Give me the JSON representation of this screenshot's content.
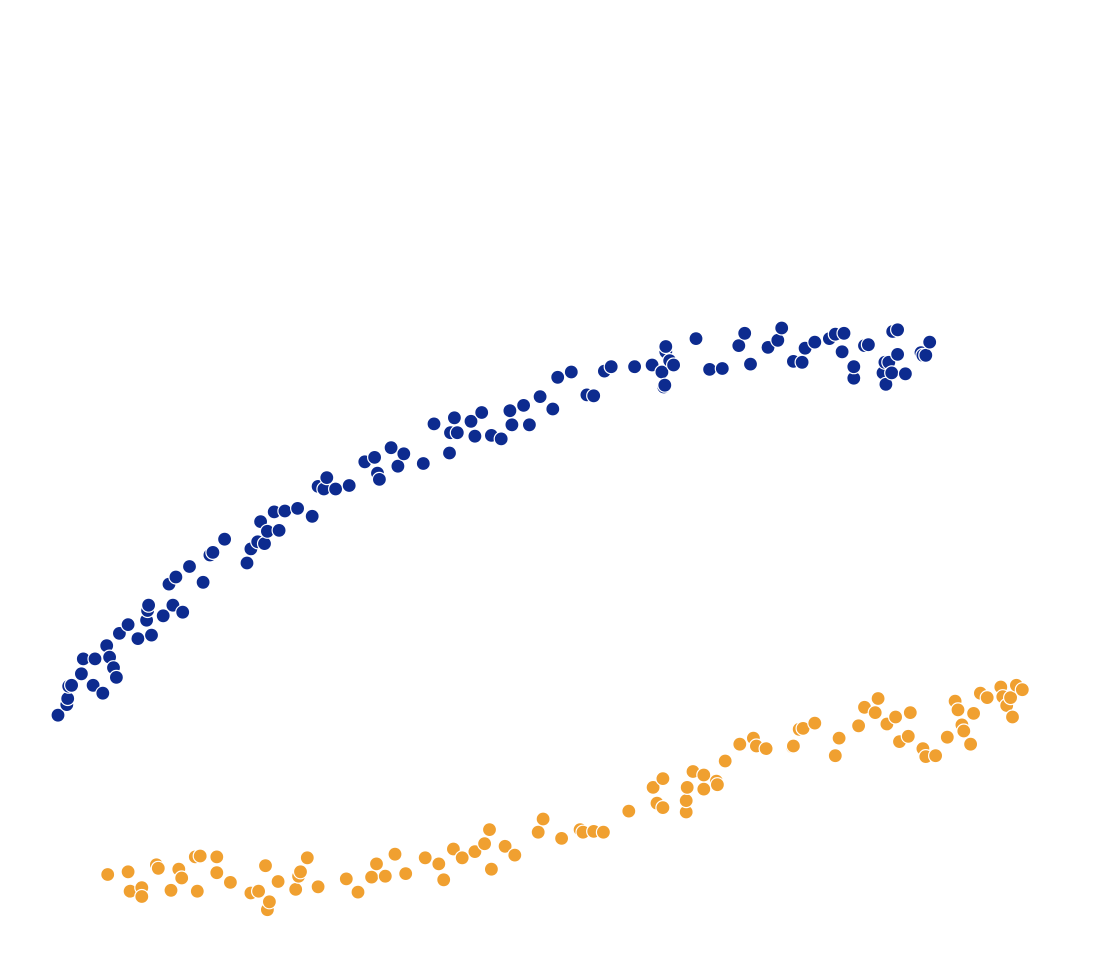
{
  "chart_data": {
    "type": "scatter",
    "title": "",
    "xlabel": "",
    "ylabel": "",
    "xlim": [
      0,
      100
    ],
    "ylim": [
      0,
      100
    ],
    "grid": false,
    "legend": "none",
    "series": [
      {
        "name": "blue",
        "color": "#0d2b8f",
        "points": [
          [
            0.0,
            33.5
          ],
          [
            0.9,
            34.7
          ],
          [
            1.0,
            35.4
          ],
          [
            1.1,
            36.8
          ],
          [
            1.4,
            36.9
          ],
          [
            2.4,
            38.2
          ],
          [
            2.6,
            39.9
          ],
          [
            3.6,
            36.9
          ],
          [
            3.8,
            39.9
          ],
          [
            4.6,
            36.0
          ],
          [
            5.0,
            41.4
          ],
          [
            5.3,
            40.1
          ],
          [
            5.7,
            38.9
          ],
          [
            6.0,
            37.8
          ],
          [
            6.3,
            42.8
          ],
          [
            7.2,
            43.8
          ],
          [
            8.2,
            42.2
          ],
          [
            9.1,
            44.3
          ],
          [
            9.2,
            45.4
          ],
          [
            9.3,
            46.0
          ],
          [
            9.6,
            42.6
          ],
          [
            10.8,
            44.8
          ],
          [
            11.4,
            48.4
          ],
          [
            11.8,
            46.0
          ],
          [
            12.1,
            49.2
          ],
          [
            12.8,
            45.2
          ],
          [
            13.5,
            50.4
          ],
          [
            14.9,
            48.6
          ],
          [
            15.6,
            51.7
          ],
          [
            15.9,
            52.0
          ],
          [
            17.1,
            53.5
          ],
          [
            19.4,
            50.8
          ],
          [
            19.8,
            52.4
          ],
          [
            20.5,
            53.2
          ],
          [
            20.8,
            55.5
          ],
          [
            21.2,
            53.0
          ],
          [
            21.5,
            54.4
          ],
          [
            22.2,
            56.6
          ],
          [
            22.7,
            54.5
          ],
          [
            23.3,
            56.7
          ],
          [
            24.6,
            57.0
          ],
          [
            26.1,
            56.1
          ],
          [
            26.7,
            59.5
          ],
          [
            27.3,
            59.2
          ],
          [
            27.6,
            60.5
          ],
          [
            28.5,
            59.2
          ],
          [
            29.9,
            59.6
          ],
          [
            31.5,
            62.3
          ],
          [
            32.5,
            62.8
          ],
          [
            32.8,
            61.0
          ],
          [
            33.0,
            60.3
          ],
          [
            34.2,
            63.9
          ],
          [
            34.9,
            61.8
          ],
          [
            35.5,
            63.2
          ],
          [
            37.5,
            62.1
          ],
          [
            38.6,
            66.6
          ],
          [
            40.2,
            63.3
          ],
          [
            40.3,
            65.6
          ],
          [
            40.7,
            67.3
          ],
          [
            41.0,
            65.6
          ],
          [
            42.4,
            66.9
          ],
          [
            42.8,
            65.2
          ],
          [
            43.5,
            67.9
          ],
          [
            44.5,
            65.3
          ],
          [
            45.5,
            64.9
          ],
          [
            46.4,
            68.1
          ],
          [
            46.6,
            66.5
          ],
          [
            47.8,
            68.7
          ],
          [
            48.4,
            66.5
          ],
          [
            49.5,
            69.7
          ],
          [
            50.8,
            68.3
          ],
          [
            51.3,
            71.9
          ],
          [
            52.7,
            72.5
          ],
          [
            54.3,
            69.9
          ],
          [
            55.0,
            69.8
          ],
          [
            56.1,
            72.6
          ],
          [
            56.8,
            73.1
          ],
          [
            59.2,
            73.1
          ],
          [
            61.0,
            73.3
          ],
          [
            62.0,
            72.5
          ],
          [
            62.2,
            70.8
          ],
          [
            62.3,
            71.0
          ],
          [
            62.4,
            74.8
          ],
          [
            62.4,
            75.4
          ],
          [
            62.8,
            73.8
          ],
          [
            63.2,
            73.3
          ],
          [
            65.5,
            76.3
          ],
          [
            66.9,
            72.8
          ],
          [
            68.2,
            72.9
          ],
          [
            69.9,
            75.5
          ],
          [
            70.5,
            76.9
          ],
          [
            71.1,
            73.4
          ],
          [
            72.9,
            75.3
          ],
          [
            73.9,
            76.1
          ],
          [
            74.3,
            77.5
          ],
          [
            75.5,
            73.7
          ],
          [
            76.4,
            73.6
          ],
          [
            76.7,
            75.2
          ],
          [
            77.7,
            75.9
          ],
          [
            79.2,
            76.3
          ],
          [
            79.8,
            76.8
          ],
          [
            80.5,
            74.8
          ],
          [
            80.7,
            76.9
          ],
          [
            81.7,
            71.8
          ],
          [
            81.7,
            73.1
          ],
          [
            82.8,
            75.5
          ],
          [
            83.2,
            75.6
          ],
          [
            84.7,
            72.4
          ],
          [
            84.9,
            73.6
          ],
          [
            85.0,
            71.1
          ],
          [
            85.3,
            73.6
          ],
          [
            85.6,
            72.4
          ],
          [
            85.7,
            77.1
          ],
          [
            86.2,
            74.5
          ],
          [
            86.2,
            77.3
          ],
          [
            87.0,
            72.3
          ],
          [
            88.6,
            74.7
          ],
          [
            88.8,
            74.4
          ],
          [
            89.1,
            74.4
          ],
          [
            89.5,
            75.9
          ]
        ]
      },
      {
        "name": "orange",
        "color": "#f0a030",
        "points": [
          [
            5.1,
            15.4
          ],
          [
            7.2,
            15.7
          ],
          [
            7.4,
            13.5
          ],
          [
            8.6,
            13.9
          ],
          [
            8.6,
            12.9
          ],
          [
            10.1,
            16.5
          ],
          [
            10.3,
            16.1
          ],
          [
            11.6,
            13.6
          ],
          [
            12.4,
            16.0
          ],
          [
            12.7,
            15.0
          ],
          [
            14.1,
            17.4
          ],
          [
            14.3,
            13.5
          ],
          [
            14.6,
            17.5
          ],
          [
            16.3,
            15.6
          ],
          [
            16.3,
            17.4
          ],
          [
            17.7,
            14.5
          ],
          [
            19.8,
            13.3
          ],
          [
            20.6,
            13.5
          ],
          [
            21.3,
            16.4
          ],
          [
            21.5,
            11.4
          ],
          [
            21.7,
            12.3
          ],
          [
            22.6,
            14.6
          ],
          [
            24.4,
            13.7
          ],
          [
            24.7,
            15.2
          ],
          [
            24.9,
            15.7
          ],
          [
            25.6,
            17.3
          ],
          [
            26.7,
            14.0
          ],
          [
            29.6,
            14.9
          ],
          [
            30.8,
            13.4
          ],
          [
            32.2,
            15.1
          ],
          [
            32.7,
            16.6
          ],
          [
            33.6,
            15.2
          ],
          [
            34.6,
            17.7
          ],
          [
            35.7,
            15.5
          ],
          [
            37.7,
            17.3
          ],
          [
            39.1,
            16.6
          ],
          [
            39.6,
            14.8
          ],
          [
            40.6,
            18.3
          ],
          [
            41.5,
            17.3
          ],
          [
            42.8,
            18.0
          ],
          [
            43.8,
            18.9
          ],
          [
            44.3,
            20.5
          ],
          [
            44.5,
            16.0
          ],
          [
            45.9,
            18.6
          ],
          [
            46.9,
            17.6
          ],
          [
            49.3,
            20.2
          ],
          [
            49.8,
            21.7
          ],
          [
            51.7,
            19.5
          ],
          [
            53.6,
            20.5
          ],
          [
            53.9,
            20.2
          ],
          [
            55.0,
            20.3
          ],
          [
            56.0,
            20.2
          ],
          [
            58.6,
            22.6
          ],
          [
            61.1,
            25.3
          ],
          [
            61.5,
            23.5
          ],
          [
            62.1,
            23.0
          ],
          [
            62.1,
            26.3
          ],
          [
            64.5,
            22.5
          ],
          [
            64.5,
            23.8
          ],
          [
            64.6,
            25.3
          ],
          [
            65.2,
            27.1
          ],
          [
            66.3,
            25.1
          ],
          [
            66.3,
            26.7
          ],
          [
            67.6,
            26.0
          ],
          [
            67.7,
            25.6
          ],
          [
            68.5,
            28.3
          ],
          [
            70.0,
            30.2
          ],
          [
            71.4,
            30.9
          ],
          [
            71.7,
            30.0
          ],
          [
            72.7,
            29.7
          ],
          [
            75.4,
            29.9
          ],
          [
            75.5,
            30.0
          ],
          [
            76.1,
            31.9
          ],
          [
            76.5,
            32.0
          ],
          [
            77.7,
            32.6
          ],
          [
            79.8,
            28.9
          ],
          [
            80.2,
            30.9
          ],
          [
            82.2,
            32.3
          ],
          [
            82.8,
            34.4
          ],
          [
            83.9,
            33.8
          ],
          [
            84.2,
            35.4
          ],
          [
            85.1,
            32.5
          ],
          [
            86.0,
            33.3
          ],
          [
            86.4,
            30.5
          ],
          [
            87.3,
            31.1
          ],
          [
            87.5,
            33.8
          ],
          [
            88.8,
            29.7
          ],
          [
            89.1,
            28.8
          ],
          [
            90.1,
            28.9
          ],
          [
            91.3,
            31.0
          ],
          [
            92.1,
            35.1
          ],
          [
            92.4,
            34.1
          ],
          [
            92.8,
            32.4
          ],
          [
            93.0,
            31.7
          ],
          [
            93.7,
            30.2
          ],
          [
            94.0,
            33.7
          ],
          [
            94.7,
            36.0
          ],
          [
            95.4,
            35.5
          ],
          [
            96.8,
            36.7
          ],
          [
            97.0,
            35.6
          ],
          [
            97.4,
            34.6
          ],
          [
            97.8,
            35.5
          ],
          [
            98.0,
            33.3
          ],
          [
            98.4,
            36.9
          ],
          [
            99.0,
            36.4
          ]
        ]
      }
    ]
  }
}
